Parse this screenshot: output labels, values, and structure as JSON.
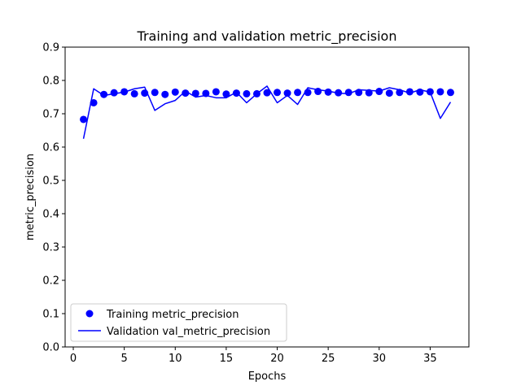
{
  "chart_data": {
    "type": "line",
    "title": "Training and validation metric_precision",
    "xlabel": "Epochs",
    "ylabel": "metric_precision",
    "xlim": [
      -0.8,
      38.8
    ],
    "ylim": [
      0.0,
      0.9
    ],
    "xticks": [
      0,
      5,
      10,
      15,
      20,
      25,
      30,
      35
    ],
    "yticks": [
      0.0,
      0.1,
      0.2,
      0.3,
      0.4,
      0.5,
      0.6,
      0.7,
      0.8,
      0.9
    ],
    "xtick_labels": [
      "0",
      "5",
      "10",
      "15",
      "20",
      "25",
      "30",
      "35"
    ],
    "ytick_labels": [
      "0.0",
      "0.1",
      "0.2",
      "0.3",
      "0.4",
      "0.5",
      "0.6",
      "0.7",
      "0.8",
      "0.9"
    ],
    "grid": false,
    "legend_position": "lower-left",
    "color": "#0000ff",
    "x": [
      1,
      2,
      3,
      4,
      5,
      6,
      7,
      8,
      9,
      10,
      11,
      12,
      13,
      14,
      15,
      16,
      17,
      18,
      19,
      20,
      21,
      22,
      23,
      24,
      25,
      26,
      27,
      28,
      29,
      30,
      31,
      32,
      33,
      34,
      35,
      36,
      37
    ],
    "series": [
      {
        "name": "Training metric_precision",
        "style": "points",
        "values": [
          0.683,
          0.733,
          0.758,
          0.763,
          0.766,
          0.76,
          0.762,
          0.764,
          0.758,
          0.765,
          0.762,
          0.761,
          0.761,
          0.766,
          0.759,
          0.762,
          0.76,
          0.76,
          0.763,
          0.764,
          0.762,
          0.764,
          0.764,
          0.767,
          0.765,
          0.763,
          0.764,
          0.764,
          0.763,
          0.767,
          0.762,
          0.764,
          0.766,
          0.765,
          0.766,
          0.766,
          0.764
        ]
      },
      {
        "name": "Validation val_metric_precision",
        "style": "line",
        "values": [
          0.625,
          0.775,
          0.755,
          0.76,
          0.765,
          0.775,
          0.78,
          0.71,
          0.73,
          0.74,
          0.768,
          0.75,
          0.755,
          0.748,
          0.748,
          0.765,
          0.733,
          0.76,
          0.783,
          0.733,
          0.755,
          0.728,
          0.778,
          0.772,
          0.768,
          0.762,
          0.76,
          0.772,
          0.77,
          0.768,
          0.778,
          0.772,
          0.762,
          0.772,
          0.765,
          0.686,
          0.735
        ]
      }
    ]
  }
}
